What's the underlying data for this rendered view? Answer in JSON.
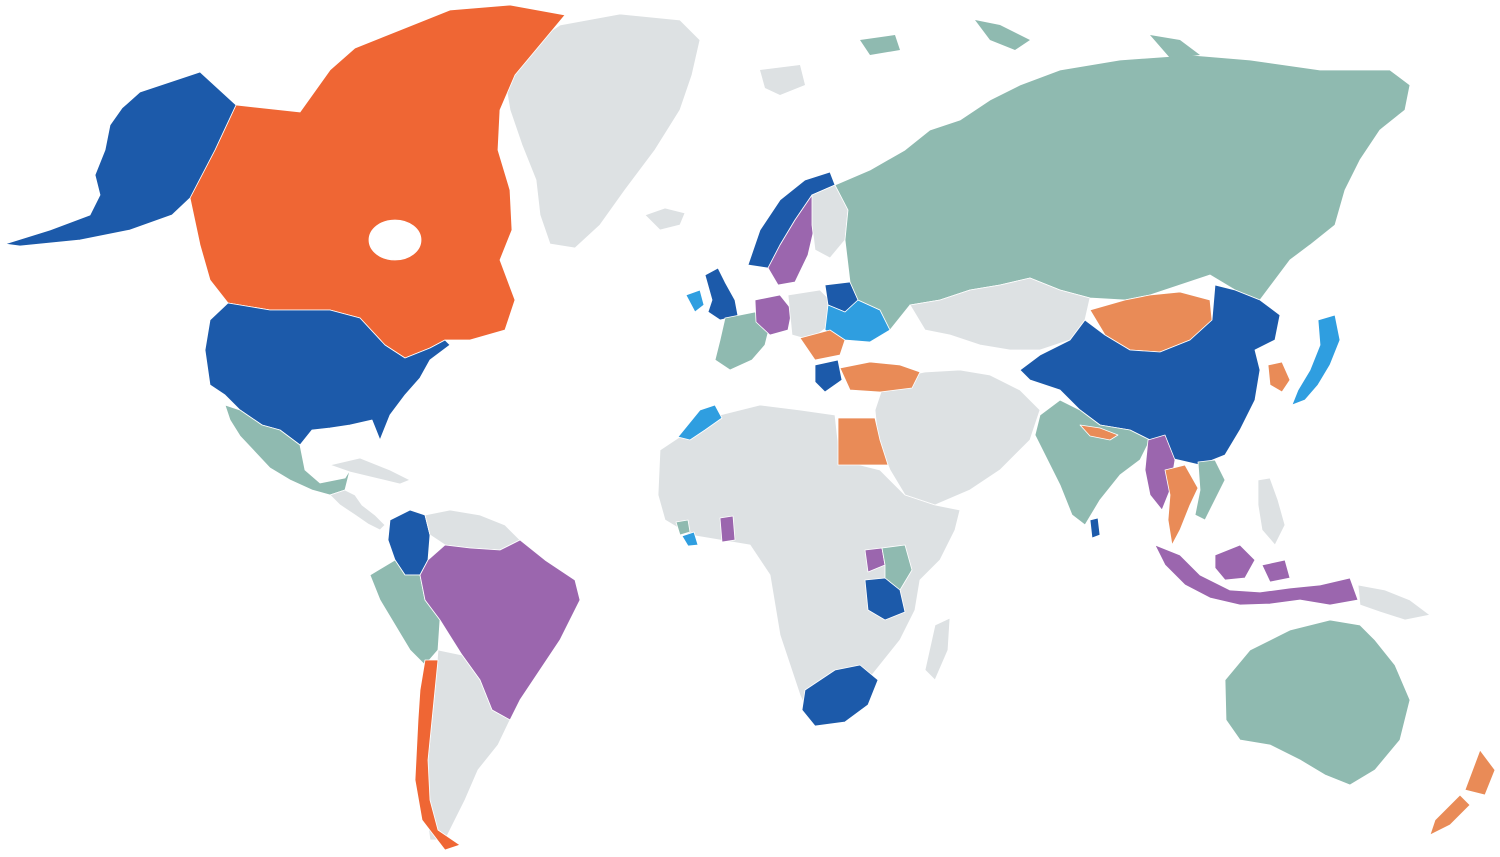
{
  "map": {
    "background": "#ffffff",
    "palette": {
      "dark_blue": "#1c5aaa",
      "light_blue": "#2f9ee0",
      "orange_red": "#ef6634",
      "light_orange": "#e98b57",
      "purple": "#9b66ae",
      "teal": "#8fbab0",
      "grey": "#dde1e3"
    },
    "regions": [
      {
        "id": "alaska",
        "category": "dark_blue"
      },
      {
        "id": "canada",
        "category": "orange_red"
      },
      {
        "id": "greenland",
        "category": "grey"
      },
      {
        "id": "usa",
        "category": "dark_blue"
      },
      {
        "id": "mexico",
        "category": "teal"
      },
      {
        "id": "central-america",
        "category": "grey"
      },
      {
        "id": "caribbean",
        "category": "grey"
      },
      {
        "id": "colombia",
        "category": "dark_blue"
      },
      {
        "id": "venezuela-guianas",
        "category": "grey"
      },
      {
        "id": "peru-ecuador",
        "category": "teal"
      },
      {
        "id": "brazil",
        "category": "purple"
      },
      {
        "id": "southern-cone",
        "category": "grey"
      },
      {
        "id": "chile",
        "category": "orange_red"
      },
      {
        "id": "iceland",
        "category": "grey"
      },
      {
        "id": "uk",
        "category": "dark_blue"
      },
      {
        "id": "ireland",
        "category": "light_blue"
      },
      {
        "id": "norway",
        "category": "dark_blue"
      },
      {
        "id": "sweden",
        "category": "purple"
      },
      {
        "id": "finland",
        "category": "grey"
      },
      {
        "id": "france-iberia",
        "category": "teal"
      },
      {
        "id": "germany",
        "category": "purple"
      },
      {
        "id": "central-europe",
        "category": "grey"
      },
      {
        "id": "belarus",
        "category": "dark_blue"
      },
      {
        "id": "ukraine",
        "category": "light_blue"
      },
      {
        "id": "balkans",
        "category": "light_orange"
      },
      {
        "id": "russia",
        "category": "teal"
      },
      {
        "id": "turkey",
        "category": "light_orange"
      },
      {
        "id": "greece",
        "category": "dark_blue"
      },
      {
        "id": "middle-east",
        "category": "grey"
      },
      {
        "id": "central-asia",
        "category": "grey"
      },
      {
        "id": "mongolia",
        "category": "light_orange"
      },
      {
        "id": "china",
        "category": "dark_blue"
      },
      {
        "id": "korea",
        "category": "light_orange"
      },
      {
        "id": "japan",
        "category": "light_blue"
      },
      {
        "id": "india",
        "category": "teal"
      },
      {
        "id": "sri-lanka",
        "category": "dark_blue"
      },
      {
        "id": "nepal",
        "category": "light_orange"
      },
      {
        "id": "myanmar",
        "category": "purple"
      },
      {
        "id": "thailand",
        "category": "light_orange"
      },
      {
        "id": "vietnam",
        "category": "teal"
      },
      {
        "id": "philippines",
        "category": "grey"
      },
      {
        "id": "indonesia",
        "category": "purple"
      },
      {
        "id": "papua-new-guinea",
        "category": "grey"
      },
      {
        "id": "australia",
        "category": "teal"
      },
      {
        "id": "new-zealand",
        "category": "light_orange"
      },
      {
        "id": "africa",
        "category": "grey"
      },
      {
        "id": "morocco",
        "category": "light_blue"
      },
      {
        "id": "egypt",
        "category": "light_orange"
      },
      {
        "id": "liberia",
        "category": "light_blue"
      },
      {
        "id": "sierra-leone",
        "category": "teal"
      },
      {
        "id": "ghana",
        "category": "purple"
      },
      {
        "id": "uganda",
        "category": "purple"
      },
      {
        "id": "kenya",
        "category": "teal"
      },
      {
        "id": "tanzania",
        "category": "dark_blue"
      },
      {
        "id": "south-africa",
        "category": "dark_blue"
      },
      {
        "id": "madagascar",
        "category": "grey"
      }
    ]
  }
}
